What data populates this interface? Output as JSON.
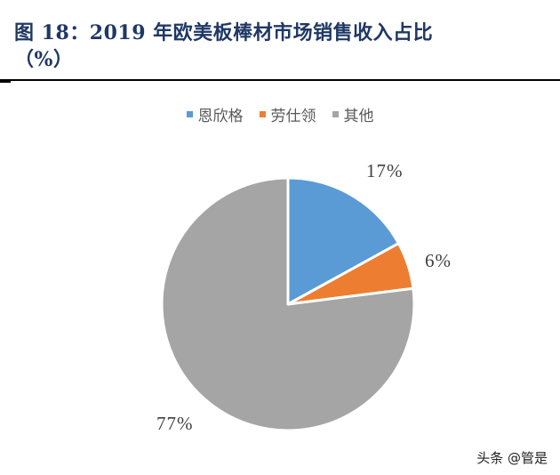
{
  "title": {
    "line1": "图 18：2019 年欧美板棒材市场销售收入占比",
    "line2": "（%）"
  },
  "legend": [
    {
      "label": "恩欣格",
      "color": "#5b9bd5"
    },
    {
      "label": "劳仕领",
      "color": "#ed7d31"
    },
    {
      "label": "其他",
      "color": "#a5a5a5"
    }
  ],
  "labels": {
    "s0": "17%",
    "s1": "6%",
    "s2": "77%"
  },
  "watermark": "头条 @管是",
  "chart_data": {
    "type": "pie",
    "title": "2019 年欧美板棒材市场销售收入占比（%）",
    "categories": [
      "恩欣格",
      "劳仕领",
      "其他"
    ],
    "values": [
      17,
      6,
      77
    ],
    "colors": [
      "#5b9bd5",
      "#ed7d31",
      "#a5a5a5"
    ],
    "legend_position": "top",
    "start_angle": "12 o'clock, clockwise"
  }
}
